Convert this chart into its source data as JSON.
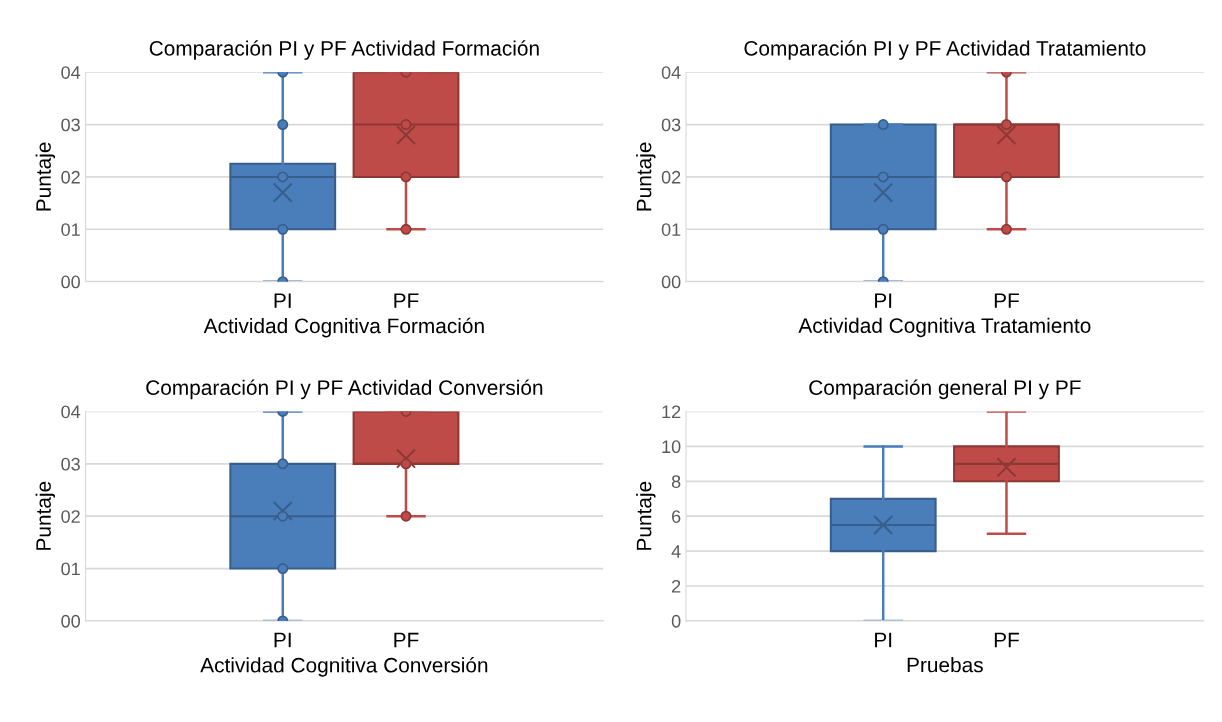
{
  "chart_data": [
    {
      "type": "box",
      "title": "Comparación PI y PF Actividad Formación",
      "xlabel": "Actividad Cognitiva Formación",
      "ylabel": "Puntaje",
      "categories": [
        "PI",
        "PF"
      ],
      "colors": [
        "#4a7ebb",
        "#be4b48"
      ],
      "ylim": [
        0,
        4
      ],
      "yticks": [
        {
          "value": 0,
          "label": "00"
        },
        {
          "value": 1,
          "label": "01"
        },
        {
          "value": 2,
          "label": "02"
        },
        {
          "value": 3,
          "label": "03"
        },
        {
          "value": 4,
          "label": "04"
        }
      ],
      "grid": "y",
      "legend": false,
      "boxes": [
        {
          "low": 0,
          "q1": 1,
          "median": 2,
          "q3": 2.25,
          "high": 4,
          "mean": 1.7
        },
        {
          "low": 1,
          "q1": 2,
          "median": 3,
          "q3": 4,
          "high": 4,
          "mean": 2.8
        }
      ],
      "series": [
        {
          "type": "scatter",
          "color": "#4a7ebb",
          "x": [
            "PI",
            "PI",
            "PI",
            "PI",
            "PI"
          ],
          "values": [
            0,
            1,
            2,
            3,
            4
          ]
        },
        {
          "type": "scatter",
          "color": "#be4b48",
          "x": [
            "PF",
            "PF",
            "PF",
            "PF"
          ],
          "values": [
            1,
            2,
            3,
            4
          ]
        }
      ]
    },
    {
      "type": "box",
      "title": "Comparación PI y PF Actividad Tratamiento",
      "xlabel": "Actividad Cognitiva Tratamiento",
      "ylabel": "Puntaje",
      "categories": [
        "PI",
        "PF"
      ],
      "colors": [
        "#4a7ebb",
        "#be4b48"
      ],
      "ylim": [
        0,
        4
      ],
      "yticks": [
        {
          "value": 0,
          "label": "00"
        },
        {
          "value": 1,
          "label": "01"
        },
        {
          "value": 2,
          "label": "02"
        },
        {
          "value": 3,
          "label": "03"
        },
        {
          "value": 4,
          "label": "04"
        }
      ],
      "grid": "y",
      "legend": false,
      "boxes": [
        {
          "low": 0,
          "q1": 1,
          "median": 2,
          "q3": 3,
          "high": 3,
          "mean": 1.7
        },
        {
          "low": 1,
          "q1": 2,
          "median": 3,
          "q3": 3,
          "high": 4,
          "mean": 2.8
        }
      ],
      "series": [
        {
          "type": "scatter",
          "color": "#4a7ebb",
          "x": [
            "PI",
            "PI",
            "PI",
            "PI"
          ],
          "values": [
            0,
            1,
            2,
            3
          ]
        },
        {
          "type": "scatter",
          "color": "#be4b48",
          "x": [
            "PF",
            "PF",
            "PF",
            "PF"
          ],
          "values": [
            1,
            2,
            3,
            4
          ]
        }
      ]
    },
    {
      "type": "box",
      "title": "Comparación PI y PF Actividad Conversión",
      "xlabel": "Actividad Cognitiva Conversión",
      "ylabel": "Puntaje",
      "categories": [
        "PI",
        "PF"
      ],
      "colors": [
        "#4a7ebb",
        "#be4b48"
      ],
      "ylim": [
        0,
        4
      ],
      "yticks": [
        {
          "value": 0,
          "label": "00"
        },
        {
          "value": 1,
          "label": "01"
        },
        {
          "value": 2,
          "label": "02"
        },
        {
          "value": 3,
          "label": "03"
        },
        {
          "value": 4,
          "label": "04"
        }
      ],
      "grid": "y",
      "legend": false,
      "boxes": [
        {
          "low": 0,
          "q1": 1,
          "median": 2,
          "q3": 3,
          "high": 4,
          "mean": 2.1
        },
        {
          "low": 2,
          "q1": 3,
          "median": 3,
          "q3": 4,
          "high": 4,
          "mean": 3.1
        }
      ],
      "series": [
        {
          "type": "scatter",
          "color": "#4a7ebb",
          "x": [
            "PI",
            "PI",
            "PI",
            "PI",
            "PI"
          ],
          "values": [
            0,
            1,
            2,
            3,
            4
          ]
        },
        {
          "type": "scatter",
          "color": "#be4b48",
          "x": [
            "PF",
            "PF",
            "PF"
          ],
          "values": [
            2,
            3,
            4
          ]
        }
      ]
    },
    {
      "type": "box",
      "title": "Comparación general PI y PF",
      "xlabel": "Pruebas",
      "ylabel": "Puntaje",
      "categories": [
        "PI",
        "PF"
      ],
      "colors": [
        "#4a7ebb",
        "#be4b48"
      ],
      "ylim": [
        0,
        12
      ],
      "yticks": [
        0,
        2,
        4,
        6,
        8,
        10,
        12
      ],
      "grid": "y",
      "legend": false,
      "boxes": [
        {
          "low": 0,
          "q1": 4,
          "median": 5.5,
          "q3": 7,
          "high": 10,
          "mean": 5.5
        },
        {
          "low": 5,
          "q1": 8,
          "median": 9,
          "q3": 10,
          "high": 12,
          "mean": 8.8
        }
      ]
    }
  ]
}
